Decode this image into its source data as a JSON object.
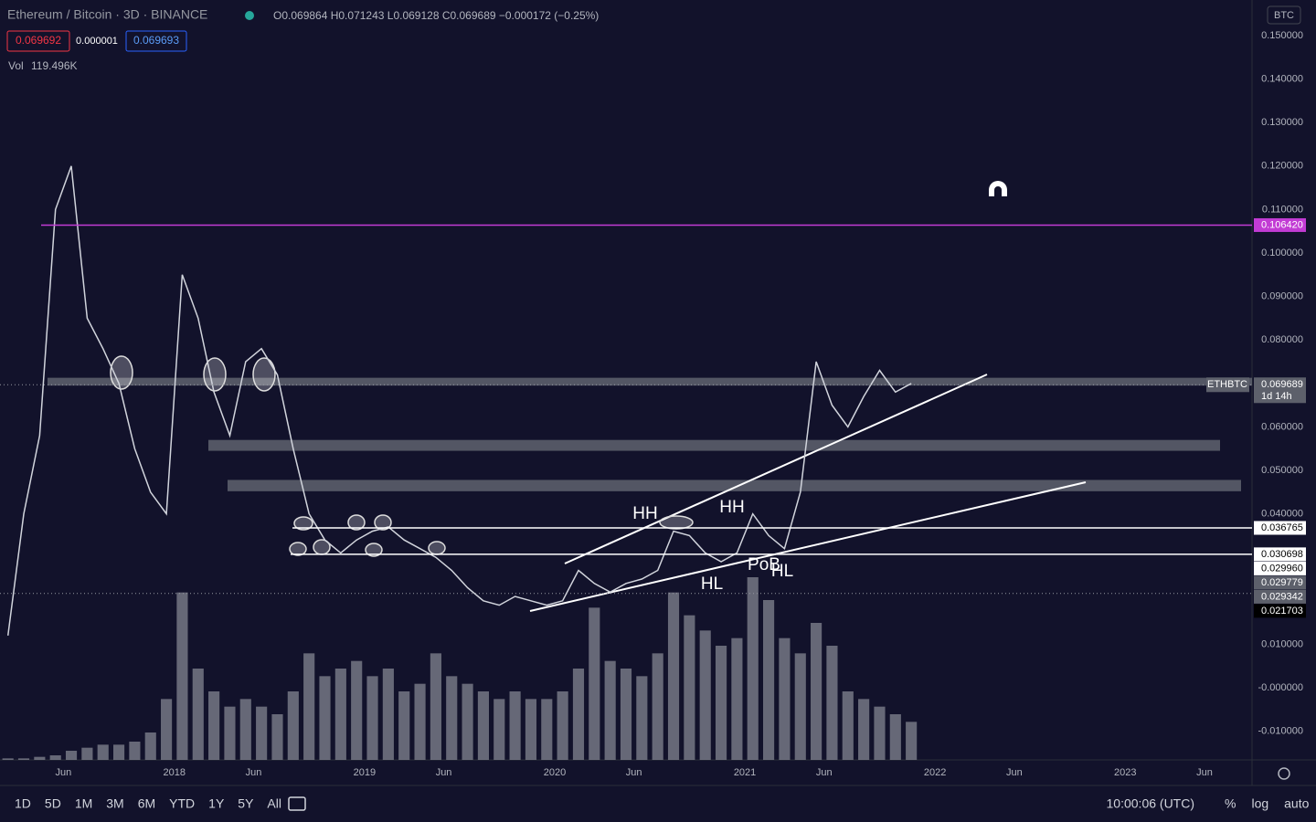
{
  "header": {
    "symbol": "Ethereum / Bitcoin · 3D · BINANCE",
    "ohlc": "O0.069864 H0.071243 L0.069128 C0.069689 −0.000172 (−0.25%)",
    "sell": "0.069692",
    "spread": "0.000001",
    "buy": "0.069693",
    "volume_label": "Vol",
    "volume_value": "119.496K",
    "currency": "BTC"
  },
  "chart_data": {
    "type": "line",
    "x": [
      "2017-02",
      "2017-03",
      "2017-04",
      "2017-05",
      "2017-06",
      "2017-07",
      "2017-08",
      "2017-09",
      "2017-10",
      "2017-11",
      "2017-12",
      "2018-01",
      "2018-02",
      "2018-03",
      "2018-04",
      "2018-05",
      "2018-06",
      "2018-07",
      "2018-08",
      "2018-09",
      "2018-10",
      "2018-11",
      "2018-12",
      "2019-01",
      "2019-02",
      "2019-03",
      "2019-04",
      "2019-05",
      "2019-06",
      "2019-07",
      "2019-08",
      "2019-09",
      "2019-10",
      "2019-11",
      "2019-12",
      "2020-01",
      "2020-02",
      "2020-03",
      "2020-04",
      "2020-05",
      "2020-06",
      "2020-07",
      "2020-08",
      "2020-09",
      "2020-10",
      "2020-11",
      "2020-12",
      "2021-01",
      "2021-02",
      "2021-03",
      "2021-04",
      "2021-05",
      "2021-06",
      "2021-07",
      "2021-08",
      "2021-09",
      "2021-10",
      "2021-11"
    ],
    "series": [
      {
        "name": "ETHBTC",
        "color": "#d1d4dc",
        "values": [
          0.012,
          0.04,
          0.058,
          0.11,
          0.12,
          0.085,
          0.078,
          0.07,
          0.055,
          0.045,
          0.04,
          0.095,
          0.085,
          0.068,
          0.058,
          0.075,
          0.078,
          0.072,
          0.055,
          0.04,
          0.034,
          0.031,
          0.034,
          0.036,
          0.037,
          0.034,
          0.032,
          0.03,
          0.027,
          0.023,
          0.02,
          0.019,
          0.021,
          0.02,
          0.019,
          0.02,
          0.027,
          0.024,
          0.022,
          0.024,
          0.025,
          0.027,
          0.036,
          0.035,
          0.031,
          0.029,
          0.031,
          0.04,
          0.035,
          0.032,
          0.045,
          0.075,
          0.065,
          0.06,
          0.067,
          0.073,
          0.068,
          0.07
        ]
      }
    ],
    "volume": {
      "color": "#8a8d99",
      "values": [
        1,
        1,
        2,
        3,
        6,
        8,
        10,
        10,
        12,
        18,
        40,
        110,
        60,
        45,
        35,
        40,
        35,
        30,
        45,
        70,
        55,
        60,
        65,
        55,
        60,
        45,
        50,
        70,
        55,
        50,
        45,
        40,
        45,
        40,
        40,
        45,
        60,
        100,
        65,
        60,
        55,
        70,
        110,
        95,
        85,
        75,
        80,
        120,
        105,
        80,
        70,
        90,
        75,
        45,
        40,
        35,
        30,
        25
      ]
    },
    "xlim": [
      "2017-02",
      "2023-09"
    ],
    "xticks": [
      {
        "value": "2017-06",
        "label": "Jun"
      },
      {
        "value": "2018-01",
        "label": "2018"
      },
      {
        "value": "2018-06",
        "label": "Jun"
      },
      {
        "value": "2019-01",
        "label": "2019"
      },
      {
        "value": "2019-06",
        "label": "Jun"
      },
      {
        "value": "2020-01",
        "label": "2020"
      },
      {
        "value": "2020-06",
        "label": "Jun"
      },
      {
        "value": "2021-01",
        "label": "2021"
      },
      {
        "value": "2021-06",
        "label": "Jun"
      },
      {
        "value": "2022-01",
        "label": "2022"
      },
      {
        "value": "2022-06",
        "label": "Jun"
      },
      {
        "value": "2023-01",
        "label": "2023"
      },
      {
        "value": "2023-06",
        "label": "Jun"
      }
    ],
    "ylim": [
      -0.0166,
      0.1582
    ],
    "yticks": [
      {
        "value": 0.15,
        "label": "0.150000"
      },
      {
        "value": 0.14,
        "label": "0.140000"
      },
      {
        "value": 0.13,
        "label": "0.130000"
      },
      {
        "value": 0.12,
        "label": "0.120000"
      },
      {
        "value": 0.11,
        "label": "0.110000"
      },
      {
        "value": 0.1,
        "label": "0.100000"
      },
      {
        "value": 0.09,
        "label": "0.090000"
      },
      {
        "value": 0.08,
        "label": "0.080000"
      },
      {
        "value": 0.06,
        "label": "0.060000"
      },
      {
        "value": 0.05,
        "label": "0.050000"
      },
      {
        "value": 0.04,
        "label": "0.040000"
      },
      {
        "value": 0.01,
        "label": "0.010000"
      },
      {
        "value": 0,
        "label": "-0.000000"
      },
      {
        "value": -0.01,
        "label": "-0.010000"
      }
    ],
    "grid": false,
    "last_price": {
      "value": 0.069689,
      "label": "0.069689",
      "symbol": "ETHBTC",
      "countdown": "1d 14h"
    },
    "price_tags": [
      {
        "value": 0.10642,
        "label": "0.106420",
        "color": "#c23bd4",
        "text_color": "#ffffff",
        "line": "solid"
      },
      {
        "value": 0.036765,
        "label": "0.036765",
        "color": "#ffffff",
        "text_color": "#000000",
        "line": "solid"
      },
      {
        "value": 0.030698,
        "label": "0.030698",
        "color": "#ffffff",
        "text_color": "#000000",
        "line": "solid"
      },
      {
        "value": 0.02996,
        "label": "0.029960",
        "color": "#ffffff",
        "text_color": "#000000",
        "line": "none"
      },
      {
        "value": 0.029779,
        "label": "0.029779",
        "color": "#5d606b",
        "text_color": "#ffffff",
        "line": "none"
      },
      {
        "value": 0.029342,
        "label": "0.029342",
        "color": "#5d606b",
        "text_color": "#ffffff",
        "line": "none"
      },
      {
        "value": 0.021703,
        "label": "0.021703",
        "color": "#000000",
        "text_color": "#ffffff",
        "line": "dotted"
      }
    ],
    "zones": [
      {
        "from": 0.0695,
        "to": 0.0713
      },
      {
        "from": 0.0545,
        "to": 0.057
      },
      {
        "from": 0.0452,
        "to": 0.0478
      }
    ],
    "annotations": [
      "HH",
      "HH",
      "HL",
      "PoB",
      "HL"
    ]
  },
  "toolbar": {
    "ranges": [
      "1D",
      "5D",
      "1M",
      "3M",
      "6M",
      "YTD",
      "1Y",
      "5Y",
      "All"
    ],
    "time": "10:00:06 (UTC)",
    "options": [
      "%",
      "log",
      "auto"
    ]
  }
}
